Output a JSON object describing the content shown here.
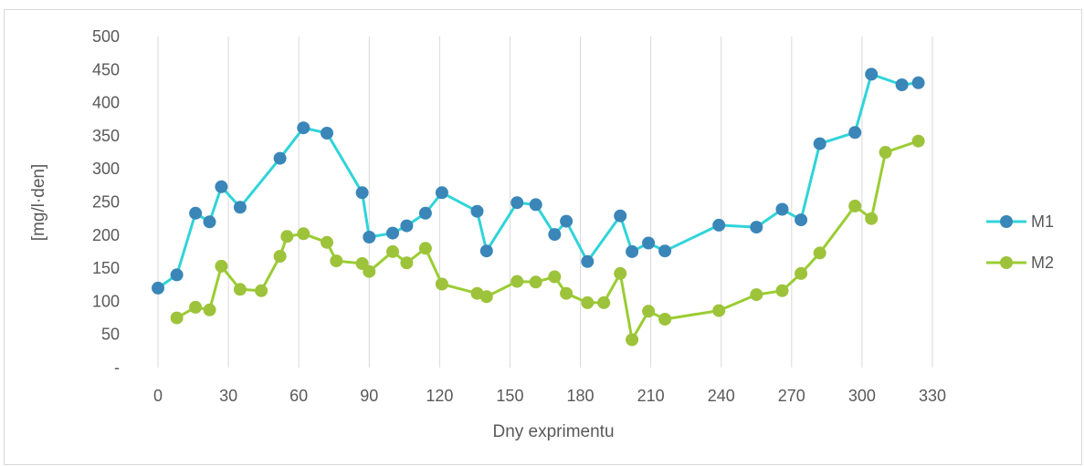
{
  "chart_data": {
    "type": "line",
    "xlabel": "Dny exprimentu",
    "ylabel": "[mg/l·den]",
    "xlim": [
      0,
      330
    ],
    "ylim": [
      0,
      500
    ],
    "x_ticks": [
      "0",
      "30",
      "60",
      "90",
      "120",
      "150",
      "180",
      "210",
      "240",
      "270",
      "300",
      "330"
    ],
    "y_ticks": [
      "-",
      "50",
      "100",
      "150",
      "200",
      "250",
      "300",
      "350",
      "400",
      "450",
      "500"
    ],
    "grid": "vertical",
    "legend_position": "right",
    "series": [
      {
        "name": "M1",
        "color": "#2fd4d9",
        "marker_color": "#3a86b8",
        "points": [
          [
            0,
            120
          ],
          [
            8,
            140
          ],
          [
            16,
            233
          ],
          [
            22,
            220
          ],
          [
            27,
            273
          ],
          [
            35,
            242
          ],
          [
            52,
            316
          ],
          [
            62,
            362
          ],
          [
            72,
            354
          ],
          [
            87,
            264
          ],
          [
            90,
            197
          ],
          [
            100,
            203
          ],
          [
            106,
            214
          ],
          [
            114,
            233
          ],
          [
            121,
            264
          ],
          [
            136,
            236
          ],
          [
            140,
            176
          ],
          [
            153,
            249
          ],
          [
            161,
            246
          ],
          [
            169,
            201
          ],
          [
            174,
            221
          ],
          [
            183,
            160
          ],
          [
            197,
            229
          ],
          [
            202,
            175
          ],
          [
            209,
            188
          ],
          [
            216,
            176
          ],
          [
            239,
            215
          ],
          [
            255,
            212
          ],
          [
            266,
            239
          ],
          [
            274,
            223
          ],
          [
            282,
            338
          ],
          [
            297,
            355
          ],
          [
            304,
            443
          ],
          [
            317,
            427
          ],
          [
            324,
            430
          ]
        ]
      },
      {
        "name": "M2",
        "color": "#9acd32",
        "marker_color": "#9dc33b",
        "points": [
          [
            8,
            75
          ],
          [
            16,
            91
          ],
          [
            22,
            87
          ],
          [
            27,
            153
          ],
          [
            35,
            118
          ],
          [
            44,
            116
          ],
          [
            52,
            168
          ],
          [
            55,
            198
          ],
          [
            62,
            202
          ],
          [
            72,
            189
          ],
          [
            76,
            161
          ],
          [
            87,
            157
          ],
          [
            90,
            145
          ],
          [
            100,
            175
          ],
          [
            106,
            158
          ],
          [
            114,
            180
          ],
          [
            121,
            126
          ],
          [
            136,
            112
          ],
          [
            140,
            107
          ],
          [
            153,
            130
          ],
          [
            161,
            129
          ],
          [
            169,
            137
          ],
          [
            174,
            112
          ],
          [
            183,
            98
          ],
          [
            190,
            98
          ],
          [
            197,
            142
          ],
          [
            202,
            42
          ],
          [
            209,
            85
          ],
          [
            216,
            73
          ],
          [
            239,
            86
          ],
          [
            255,
            110
          ],
          [
            266,
            116
          ],
          [
            274,
            142
          ],
          [
            282,
            173
          ],
          [
            297,
            244
          ],
          [
            304,
            225
          ],
          [
            310,
            325
          ],
          [
            324,
            342
          ]
        ]
      }
    ]
  }
}
